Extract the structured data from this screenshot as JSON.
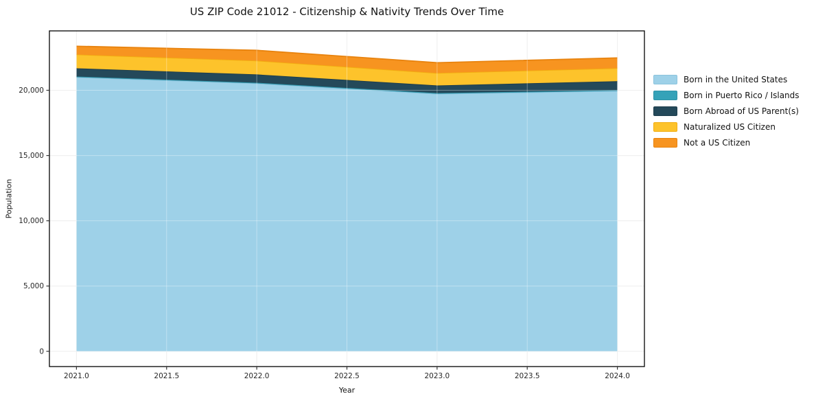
{
  "figure": {
    "background": "#ffffff",
    "spine_color": "#000000",
    "grid_color": "#e7e7e7",
    "grid_overlay_color": "rgba(255,255,255,0.35)",
    "tick_color": "#333333",
    "tick_label_color": "#262626"
  },
  "chart_data": {
    "type": "area",
    "stacked": true,
    "title": "US ZIP Code 21012 - Citizenship & Nativity Trends Over Time",
    "xlabel": "Year",
    "ylabel": "Population",
    "x": [
      2021,
      2022,
      2023,
      2024
    ],
    "series": [
      {
        "name": "Born in the United States",
        "color": "#9ed1e8",
        "edge": "#8ac3dd",
        "values": [
          21000,
          20525,
          19725,
          19950
        ]
      },
      {
        "name": "Born in Puerto Rico / Islands",
        "color": "#35a2b8",
        "edge": "#2e93a8",
        "values": [
          55,
          55,
          60,
          60
        ]
      },
      {
        "name": "Born Abroad of US Parent(s)",
        "color": "#24495a",
        "edge": "#1c3c4b",
        "values": [
          630,
          635,
          585,
          685
        ]
      },
      {
        "name": "Naturalized US Citizen",
        "color": "#fdc32b",
        "edge": "#f2ad10",
        "values": [
          1055,
          1055,
          950,
          1000
        ]
      },
      {
        "name": "Not a US Citizen",
        "color": "#f79420",
        "edge": "#e8830e",
        "values": [
          635,
          790,
          790,
          785
        ]
      }
    ],
    "xlim": [
      2020.85,
      2024.15
    ],
    "ylim": [
      -1170,
      24550
    ],
    "xticks": [
      {
        "v": 2021.0,
        "label": "2021.0"
      },
      {
        "v": 2021.5,
        "label": "2021.5"
      },
      {
        "v": 2022.0,
        "label": "2022.0"
      },
      {
        "v": 2022.5,
        "label": "2022.5"
      },
      {
        "v": 2023.0,
        "label": "2023.0"
      },
      {
        "v": 2023.5,
        "label": "2023.5"
      },
      {
        "v": 2024.0,
        "label": "2024.0"
      }
    ],
    "yticks": [
      {
        "v": 0,
        "label": "0"
      },
      {
        "v": 5000,
        "label": "5,000"
      },
      {
        "v": 10000,
        "label": "10,000"
      },
      {
        "v": 15000,
        "label": "15,000"
      },
      {
        "v": 20000,
        "label": "20,000"
      }
    ],
    "grid": true,
    "legend_position": "right"
  }
}
